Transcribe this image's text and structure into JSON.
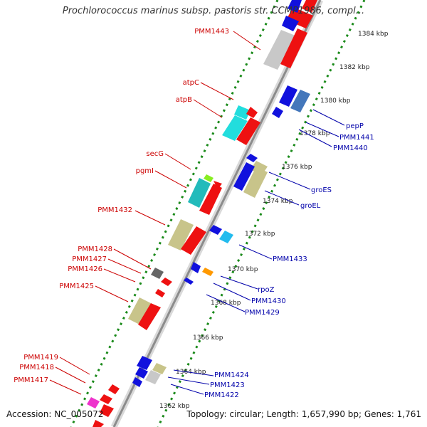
{
  "title": "Prochlorococcus marinus subsp. pastoris str. CCMP1986, compl...",
  "footer": {
    "accession": "Accession: NC_005072",
    "summary": "Topology: circular; Length: 1,657,990 bp; Genes: 1,761"
  },
  "colors": {
    "backbone": "#8c8c8c",
    "dots": "#1a8a1a",
    "forward_label": "#cc0000",
    "reverse_label": "#0000aa"
  },
  "kbp_ticks": [
    "1384 kbp",
    "1382 kbp",
    "1380 kbp",
    "1378 kbp",
    "1376 kbp",
    "1374 kbp",
    "1372 kbp",
    "1370 kbp",
    "1368 kbp",
    "1366 kbp",
    "1364 kbp",
    "1362 kbp"
  ],
  "forward_labels": [
    "PMM1443",
    "atpC",
    "atpB",
    "secG",
    "pgmI",
    "PMM1432",
    "PMM1428",
    "PMM1427",
    "PMM1426",
    "PMM1425",
    "PMM1419",
    "PMM1418",
    "PMM1417"
  ],
  "reverse_labels": [
    "pepP",
    "PMM1441",
    "PMM1440",
    "groES",
    "groEL",
    "PMM1433",
    "rpoZ",
    "PMM1430",
    "PMM1429",
    "PMM1424",
    "PMM1423",
    "PMM1422"
  ]
}
